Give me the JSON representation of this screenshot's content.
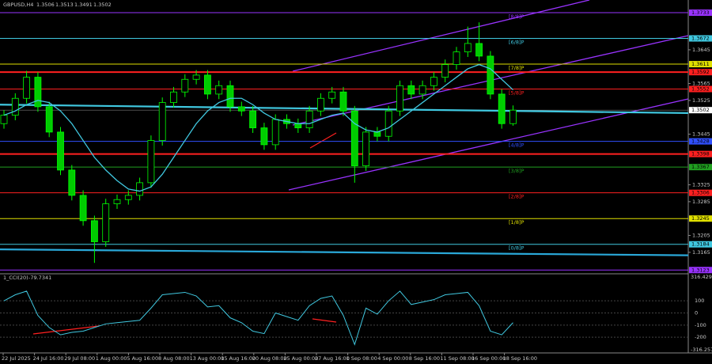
{
  "chart_data": {
    "type": "candlestick",
    "title": "GBPUSD,H4",
    "ohlc_header": [
      1.3506,
      1.3513,
      1.3491,
      1.3502
    ],
    "ylim": [
      1.3116,
      1.3763
    ],
    "yticks": [
      1.3645,
      1.3565,
      1.3525,
      1.3445,
      1.3325,
      1.3285,
      1.3205,
      1.3165
    ],
    "dates": [
      "22 Jul 2025",
      "24 Jul 16:00",
      "29 Jul 08:00",
      "1 Aug 00:00",
      "5 Aug 16:00",
      "8 Aug 08:00",
      "13 Aug 00:00",
      "15 Aug 16:00",
      "20 Aug 08:00",
      "25 Aug 00:00",
      "27 Aug 16:00",
      "1 Sep 08:00",
      "4 Sep 00:00",
      "8 Sep 16:00",
      "11 Sep 08:00",
      "16 Sep 00:00",
      "18 Sep 16:00"
    ],
    "up_color": "#00ff00",
    "down_color": "#00cc00",
    "open": [
      1.347,
      1.349,
      1.353,
      1.358,
      1.351,
      1.345,
      1.336,
      1.33,
      1.324,
      1.319,
      1.328,
      1.329,
      1.33,
      1.333,
      1.343,
      1.352,
      1.3545,
      1.3575,
      1.3585,
      1.354,
      1.356,
      1.351,
      1.35,
      1.346,
      1.342,
      1.348,
      1.347,
      1.346,
      1.35,
      1.353,
      1.3545,
      1.35,
      1.337,
      1.345,
      1.344,
      1.35,
      1.356,
      1.354,
      1.356,
      1.358,
      1.361,
      1.364,
      1.366,
      1.363,
      1.354,
      1.347
    ],
    "high": [
      1.3502,
      1.3542,
      1.3595,
      1.3592,
      1.3522,
      1.3462,
      1.3372,
      1.3312,
      1.3252,
      1.3292,
      1.3302,
      1.3312,
      1.3342,
      1.3442,
      1.3532,
      1.3557,
      1.3587,
      1.3597,
      1.3597,
      1.3572,
      1.3572,
      1.3522,
      1.3512,
      1.3472,
      1.3492,
      1.3492,
      1.3482,
      1.3512,
      1.3542,
      1.3557,
      1.3557,
      1.3512,
      1.3462,
      1.3462,
      1.3512,
      1.3572,
      1.3572,
      1.3572,
      1.3592,
      1.3622,
      1.3652,
      1.37,
      1.371,
      1.3642,
      1.3552,
      1.3513
    ],
    "low": [
      1.3458,
      1.3478,
      1.3518,
      1.3498,
      1.3438,
      1.3348,
      1.3288,
      1.3228,
      1.314,
      1.3178,
      1.3268,
      1.3278,
      1.3288,
      1.3318,
      1.3418,
      1.3508,
      1.3533,
      1.3563,
      1.3528,
      1.3528,
      1.3498,
      1.3488,
      1.3448,
      1.3408,
      1.3408,
      1.3458,
      1.3448,
      1.3448,
      1.3488,
      1.3518,
      1.3488,
      1.333,
      1.3358,
      1.3428,
      1.3428,
      1.3488,
      1.3528,
      1.3528,
      1.3548,
      1.3568,
      1.3598,
      1.3628,
      1.3618,
      1.3528,
      1.3458,
      1.3465
    ],
    "close": [
      1.349,
      1.353,
      1.358,
      1.351,
      1.345,
      1.336,
      1.33,
      1.324,
      1.319,
      1.328,
      1.329,
      1.33,
      1.333,
      1.343,
      1.352,
      1.3545,
      1.3575,
      1.3585,
      1.354,
      1.356,
      1.351,
      1.35,
      1.346,
      1.342,
      1.348,
      1.347,
      1.346,
      1.35,
      1.353,
      1.3545,
      1.35,
      1.337,
      1.345,
      1.344,
      1.35,
      1.356,
      1.354,
      1.356,
      1.358,
      1.361,
      1.364,
      1.366,
      1.363,
      1.354,
      1.347,
      1.3502
    ],
    "ma_fast": {
      "color": "#40c8e0",
      "values": [
        1.349,
        1.35,
        1.3515,
        1.3525,
        1.352,
        1.35,
        1.347,
        1.343,
        1.339,
        1.336,
        1.3335,
        1.3315,
        1.331,
        1.332,
        1.335,
        1.339,
        1.343,
        1.347,
        1.35,
        1.352,
        1.353,
        1.353,
        1.3515,
        1.3495,
        1.348,
        1.3475,
        1.347,
        1.347,
        1.348,
        1.349,
        1.3495,
        1.347,
        1.3455,
        1.345,
        1.346,
        1.348,
        1.35,
        1.352,
        1.354,
        1.356,
        1.358,
        1.36,
        1.361,
        1.36,
        1.3575,
        1.355
      ]
    },
    "ma_slow": {
      "color": "#40c8e0",
      "values": [
        1.3515,
        1.3495
      ]
    },
    "ma_long": {
      "color": "#2aa8d8",
      "values": [
        1.3172,
        1.3158
      ]
    },
    "levels": [
      {
        "value": 1.3733,
        "color": "#9933ff",
        "label": "[8/8]P"
      },
      {
        "value": 1.3672,
        "color": "#40c8e0",
        "label": "[6/8]P"
      },
      {
        "value": 1.3611,
        "color": "#e0e000",
        "label": "[7/8]P"
      },
      {
        "value": 1.3592,
        "color": "#ff2020"
      },
      {
        "value": 1.3552,
        "color": "#ff2020",
        "label": "[5/8]P"
      },
      {
        "value": 1.3428,
        "color": "#3050ff",
        "label": "[4/8]P"
      },
      {
        "value": 1.3398,
        "color": "#ff2020"
      },
      {
        "value": 1.3367,
        "color": "#20a020",
        "label": "[3/8]P"
      },
      {
        "value": 1.3306,
        "color": "#ff2020",
        "label": "[2/8]P"
      },
      {
        "value": 1.3245,
        "color": "#e0e000",
        "label": "[1/8]P"
      },
      {
        "value": 1.3184,
        "color": "#40c8e0",
        "label": "[0/8]P"
      },
      {
        "value": 1.3123,
        "color": "#9933ff"
      }
    ],
    "current_price": 1.3502,
    "indicator": "1_CCI(20)",
    "cci_value": -79.7341,
    "cci": {
      "color": "#40c8e0",
      "ylim": [
        -316.257,
        316.429
      ],
      "yticks": [
        100,
        0,
        -100,
        -200
      ],
      "values": [
        100,
        150,
        180,
        -20,
        -120,
        -180,
        -160,
        -150,
        -120,
        -90,
        -80,
        -70,
        -60,
        40,
        150,
        160,
        170,
        140,
        50,
        60,
        -40,
        -80,
        -150,
        -170,
        0,
        -30,
        -60,
        60,
        120,
        140,
        -20,
        -260,
        40,
        -10,
        100,
        180,
        70,
        90,
        110,
        150,
        160,
        170,
        60,
        -150,
        -180,
        -79.7341
      ]
    }
  }
}
